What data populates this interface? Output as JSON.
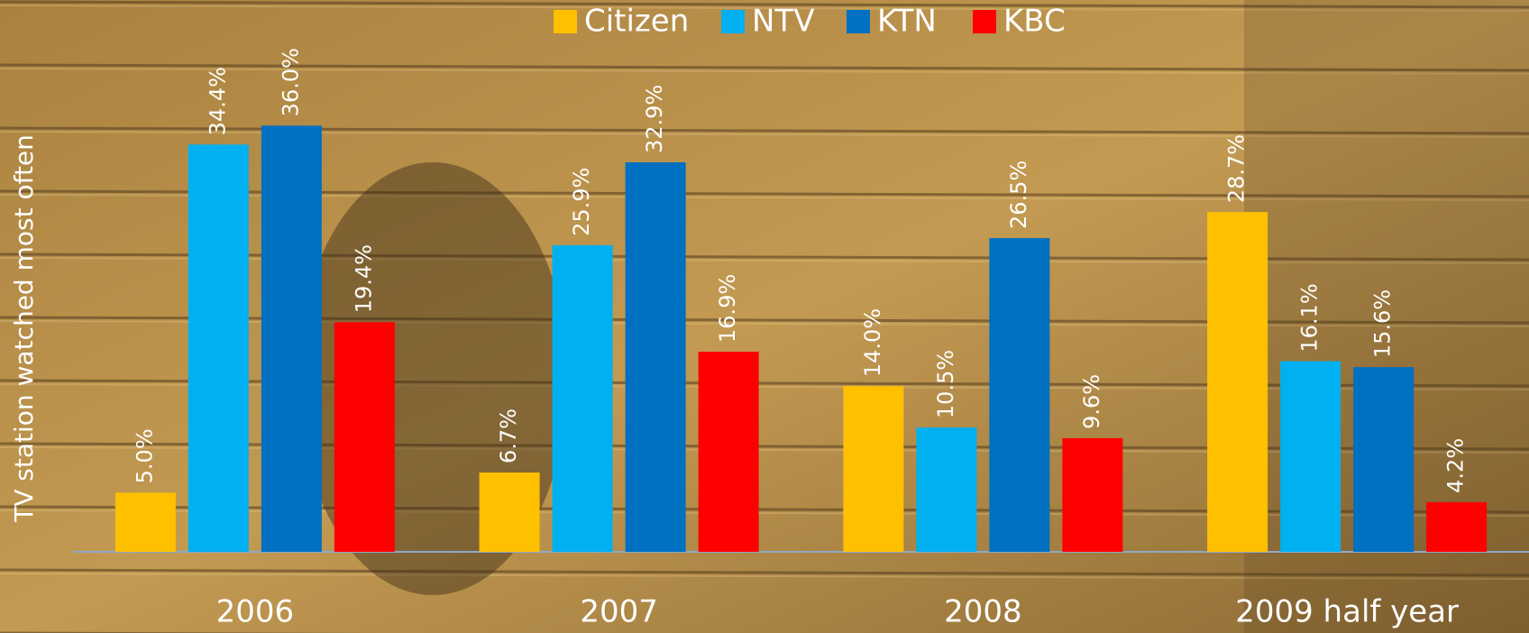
{
  "chart_data": {
    "type": "bar",
    "y_axis_label": "TV station watched most often",
    "categories": [
      "2006",
      "2007",
      "2008",
      "2009 half year"
    ],
    "series": [
      {
        "name": "Citizen",
        "color": "#ffc000",
        "values": [
          5.0,
          6.7,
          14.0,
          28.7
        ],
        "value_labels": [
          "5.0%",
          "6.7%",
          "14.0%",
          "28.7%"
        ]
      },
      {
        "name": "NTV",
        "color": "#00b0f0",
        "values": [
          34.4,
          25.9,
          10.5,
          16.1
        ],
        "value_labels": [
          "34.4%",
          "25.9%",
          "10.5%",
          "16.1%"
        ]
      },
      {
        "name": "KTN",
        "color": "#0070c0",
        "values": [
          36.0,
          32.9,
          26.5,
          15.6
        ],
        "value_labels": [
          "36.0%",
          "32.9%",
          "26.5%",
          "15.6%"
        ]
      },
      {
        "name": "KBC",
        "color": "#ff0000",
        "values": [
          19.4,
          16.9,
          9.6,
          4.2
        ],
        "value_labels": [
          "19.4%",
          "16.9%",
          "9.6%",
          "4.2%"
        ]
      }
    ],
    "legend": "top"
  }
}
